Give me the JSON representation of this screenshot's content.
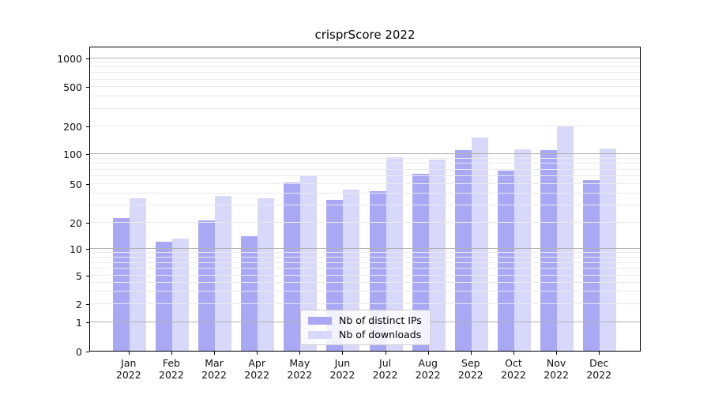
{
  "chart_data": {
    "type": "bar",
    "title": "crisprScore 2022",
    "categories": [
      "Jan\n2022",
      "Feb\n2022",
      "Mar\n2022",
      "Apr\n2022",
      "May\n2022",
      "Jun\n2022",
      "Jul\n2022",
      "Aug\n2022",
      "Sep\n2022",
      "Oct\n2022",
      "Nov\n2022",
      "Dec\n2022"
    ],
    "series": [
      {
        "name": "Nb of distinct IPs",
        "color": "#a8a8f5",
        "values": [
          22,
          12,
          21,
          14,
          51,
          34,
          42,
          63,
          110,
          68,
          110,
          54
        ]
      },
      {
        "name": "Nb of downloads",
        "color": "#d8d8fa",
        "values": [
          35,
          13,
          37,
          35,
          61,
          43,
          92,
          87,
          150,
          113,
          200,
          115
        ]
      }
    ],
    "yticks": [
      0,
      1,
      2,
      5,
      10,
      20,
      50,
      100,
      200,
      500,
      1000
    ],
    "yscale": "symlog",
    "ylim": [
      0,
      1300
    ],
    "grid": "horizontal, major lines at powers of 10, faint minor log lines",
    "legend_position": "lower center inside plot",
    "major_grid_color": "#b2b2b2",
    "minor_grid_color": "#eaeaea"
  }
}
